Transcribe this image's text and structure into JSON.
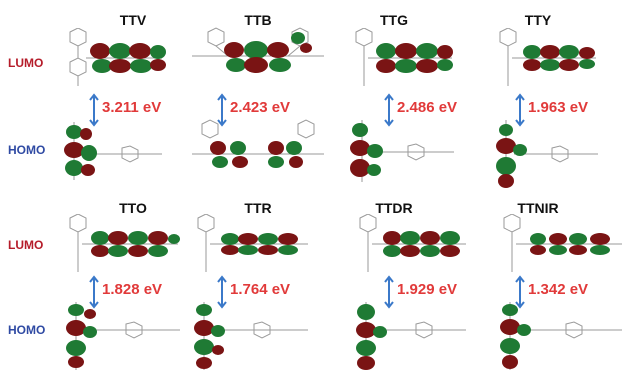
{
  "row_labels": {
    "lumo": "LUMO",
    "homo": "HOMO"
  },
  "colors": {
    "lumo": "#b51c2a",
    "homo": "#2f4aa3",
    "gap": "#e13a3a",
    "arrow": "#3b79c9",
    "lobe_red": "#7a1414",
    "lobe_green": "#1f7a34"
  },
  "molecules": [
    {
      "name": "TTV",
      "gap": "3.211 eV"
    },
    {
      "name": "TTB",
      "gap": "2.423 eV"
    },
    {
      "name": "TTG",
      "gap": "2.486 eV"
    },
    {
      "name": "TTY",
      "gap": "1.963 eV"
    },
    {
      "name": "TTO",
      "gap": "1.828 eV"
    },
    {
      "name": "TTR",
      "gap": "1.764 eV"
    },
    {
      "name": "TTDR",
      "gap": "1.929 eV"
    },
    {
      "name": "TTNIR",
      "gap": "1.342 eV"
    }
  ]
}
